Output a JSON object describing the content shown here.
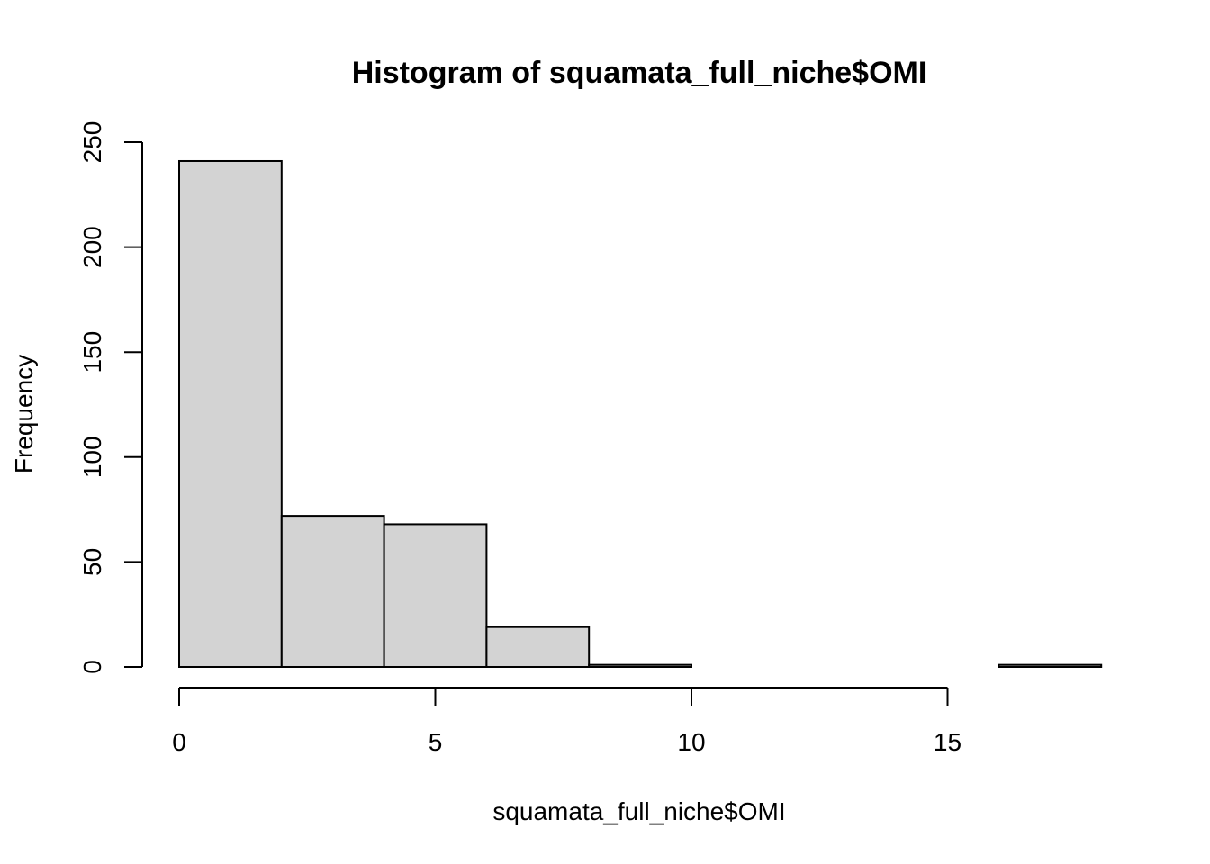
{
  "chart_data": {
    "type": "bar",
    "subtype": "histogram",
    "title": "Histogram of squamata_full_niche$OMI",
    "xlabel": "squamata_full_niche$OMI",
    "ylabel": "Frequency",
    "bins": [
      {
        "start": 0,
        "end": 2,
        "count": 241
      },
      {
        "start": 2,
        "end": 4,
        "count": 72
      },
      {
        "start": 4,
        "end": 6,
        "count": 68
      },
      {
        "start": 6,
        "end": 8,
        "count": 19
      },
      {
        "start": 8,
        "end": 10,
        "count": 1
      },
      {
        "start": 10,
        "end": 12,
        "count": 0
      },
      {
        "start": 12,
        "end": 14,
        "count": 0
      },
      {
        "start": 14,
        "end": 16,
        "count": 0
      },
      {
        "start": 16,
        "end": 18,
        "count": 1
      }
    ],
    "x_ticks": [
      0,
      5,
      10,
      15
    ],
    "x_tick_labels": [
      "0",
      "5",
      "10",
      "15"
    ],
    "y_ticks": [
      0,
      50,
      100,
      150,
      200,
      250
    ],
    "y_tick_labels": [
      "0",
      "50",
      "100",
      "150",
      "200",
      "250"
    ],
    "xlim": [
      0,
      18
    ],
    "ylim": [
      0,
      250
    ],
    "bar_fill": "#d3d3d3",
    "line_color": "#000000",
    "grid": false
  }
}
